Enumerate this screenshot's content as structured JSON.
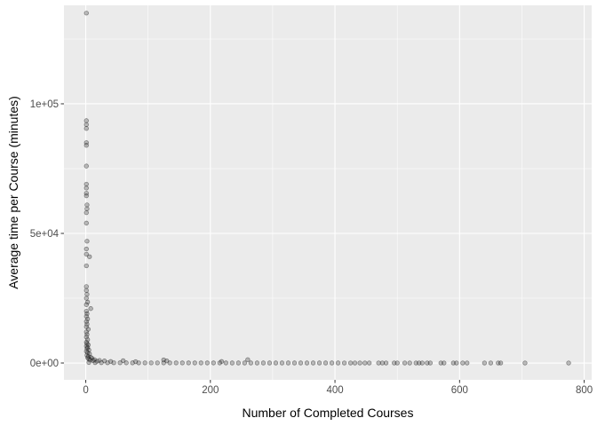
{
  "chart_data": {
    "type": "scatter",
    "title": "",
    "xlabel": "Number of Completed Courses",
    "ylabel": "Average time per Course (minutes)",
    "xlim": [
      -35,
      812
    ],
    "ylim": [
      -6500,
      138000
    ],
    "x_ticks": [
      0,
      200,
      400,
      600,
      800
    ],
    "x_tick_labels": [
      "0",
      "200",
      "400",
      "600",
      "800"
    ],
    "y_ticks": [
      0,
      50000,
      100000
    ],
    "y_tick_labels": [
      "0e+00",
      "5e+04",
      "1e+05"
    ],
    "grid": true,
    "legend": "none",
    "colors": {
      "panel_background": "#ebebeb",
      "grid_major": "#ffffff",
      "point_fill": "#4d4d4d",
      "point_stroke": "#000000"
    },
    "points": [
      {
        "x": 1,
        "y": 135000
      },
      {
        "x": 1,
        "y": 93500
      },
      {
        "x": 1,
        "y": 92000
      },
      {
        "x": 1,
        "y": 90500
      },
      {
        "x": 1,
        "y": 85000
      },
      {
        "x": 1,
        "y": 84000
      },
      {
        "x": 1,
        "y": 76000
      },
      {
        "x": 1,
        "y": 69000
      },
      {
        "x": 1,
        "y": 67500
      },
      {
        "x": 1,
        "y": 65500
      },
      {
        "x": 1,
        "y": 64500
      },
      {
        "x": 2,
        "y": 61000
      },
      {
        "x": 2,
        "y": 59500
      },
      {
        "x": 1,
        "y": 58000
      },
      {
        "x": 1,
        "y": 54000
      },
      {
        "x": 2,
        "y": 47000
      },
      {
        "x": 1,
        "y": 44000
      },
      {
        "x": 1,
        "y": 42000
      },
      {
        "x": 6,
        "y": 41000
      },
      {
        "x": 1,
        "y": 37500
      },
      {
        "x": 1,
        "y": 29500
      },
      {
        "x": 1,
        "y": 28000
      },
      {
        "x": 2,
        "y": 26500
      },
      {
        "x": 1,
        "y": 25000
      },
      {
        "x": 3,
        "y": 23500
      },
      {
        "x": 1,
        "y": 22500
      },
      {
        "x": 8,
        "y": 21000
      },
      {
        "x": 1,
        "y": 20000
      },
      {
        "x": 2,
        "y": 19000
      },
      {
        "x": 1,
        "y": 18000
      },
      {
        "x": 3,
        "y": 17000
      },
      {
        "x": 1,
        "y": 16000
      },
      {
        "x": 2,
        "y": 15000
      },
      {
        "x": 1,
        "y": 14000
      },
      {
        "x": 4,
        "y": 13000
      },
      {
        "x": 1,
        "y": 12000
      },
      {
        "x": 2,
        "y": 11000
      },
      {
        "x": 1,
        "y": 10000
      },
      {
        "x": 3,
        "y": 9000
      },
      {
        "x": 1,
        "y": 8000
      },
      {
        "x": 2,
        "y": 7500
      },
      {
        "x": 4,
        "y": 7000
      },
      {
        "x": 1,
        "y": 6500
      },
      {
        "x": 3,
        "y": 6000
      },
      {
        "x": 2,
        "y": 5500
      },
      {
        "x": 5,
        "y": 5000
      },
      {
        "x": 1,
        "y": 4500
      },
      {
        "x": 3,
        "y": 4000
      },
      {
        "x": 6,
        "y": 3500
      },
      {
        "x": 2,
        "y": 3000
      },
      {
        "x": 4,
        "y": 2500
      },
      {
        "x": 8,
        "y": 2200
      },
      {
        "x": 3,
        "y": 2000
      },
      {
        "x": 10,
        "y": 1800
      },
      {
        "x": 5,
        "y": 1500
      },
      {
        "x": 14,
        "y": 1300
      },
      {
        "x": 7,
        "y": 1100
      },
      {
        "x": 22,
        "y": 1000
      },
      {
        "x": 12,
        "y": 900
      },
      {
        "x": 30,
        "y": 800
      },
      {
        "x": 18,
        "y": 700
      },
      {
        "x": 40,
        "y": 600
      },
      {
        "x": 60,
        "y": 900
      },
      {
        "x": 80,
        "y": 500
      },
      {
        "x": 125,
        "y": 1200
      },
      {
        "x": 130,
        "y": 800
      },
      {
        "x": 260,
        "y": 1300
      },
      {
        "x": 218,
        "y": 600
      },
      {
        "x": 5,
        "y": 200
      },
      {
        "x": 15,
        "y": 150
      },
      {
        "x": 25,
        "y": 120
      },
      {
        "x": 35,
        "y": 100
      },
      {
        "x": 45,
        "y": 90
      },
      {
        "x": 55,
        "y": 80
      },
      {
        "x": 65,
        "y": 70
      },
      {
        "x": 75,
        "y": 65
      },
      {
        "x": 85,
        "y": 60
      },
      {
        "x": 95,
        "y": 55
      },
      {
        "x": 105,
        "y": 50
      },
      {
        "x": 115,
        "y": 48
      },
      {
        "x": 125,
        "y": 45
      },
      {
        "x": 135,
        "y": 42
      },
      {
        "x": 145,
        "y": 40
      },
      {
        "x": 155,
        "y": 38
      },
      {
        "x": 165,
        "y": 36
      },
      {
        "x": 175,
        "y": 34
      },
      {
        "x": 185,
        "y": 32
      },
      {
        "x": 195,
        "y": 30
      },
      {
        "x": 205,
        "y": 30
      },
      {
        "x": 215,
        "y": 28
      },
      {
        "x": 225,
        "y": 28
      },
      {
        "x": 235,
        "y": 26
      },
      {
        "x": 245,
        "y": 26
      },
      {
        "x": 255,
        "y": 25
      },
      {
        "x": 265,
        "y": 25
      },
      {
        "x": 275,
        "y": 24
      },
      {
        "x": 285,
        "y": 24
      },
      {
        "x": 295,
        "y": 23
      },
      {
        "x": 305,
        "y": 23
      },
      {
        "x": 315,
        "y": 22
      },
      {
        "x": 325,
        "y": 22
      },
      {
        "x": 335,
        "y": 21
      },
      {
        "x": 345,
        "y": 21
      },
      {
        "x": 355,
        "y": 20
      },
      {
        "x": 365,
        "y": 20
      },
      {
        "x": 375,
        "y": 20
      },
      {
        "x": 385,
        "y": 19
      },
      {
        "x": 395,
        "y": 19
      },
      {
        "x": 405,
        "y": 19
      },
      {
        "x": 415,
        "y": 18
      },
      {
        "x": 425,
        "y": 18
      },
      {
        "x": 432,
        "y": 18
      },
      {
        "x": 440,
        "y": 17
      },
      {
        "x": 448,
        "y": 17
      },
      {
        "x": 455,
        "y": 17
      },
      {
        "x": 470,
        "y": 16
      },
      {
        "x": 476,
        "y": 16
      },
      {
        "x": 482,
        "y": 16
      },
      {
        "x": 495,
        "y": 15
      },
      {
        "x": 500,
        "y": 15
      },
      {
        "x": 512,
        "y": 15
      },
      {
        "x": 520,
        "y": 15
      },
      {
        "x": 530,
        "y": 14
      },
      {
        "x": 535,
        "y": 14
      },
      {
        "x": 540,
        "y": 14
      },
      {
        "x": 548,
        "y": 14
      },
      {
        "x": 553,
        "y": 14
      },
      {
        "x": 570,
        "y": 13
      },
      {
        "x": 575,
        "y": 13
      },
      {
        "x": 590,
        "y": 13
      },
      {
        "x": 595,
        "y": 13
      },
      {
        "x": 605,
        "y": 12
      },
      {
        "x": 612,
        "y": 12
      },
      {
        "x": 640,
        "y": 12
      },
      {
        "x": 650,
        "y": 12
      },
      {
        "x": 662,
        "y": 11
      },
      {
        "x": 666,
        "y": 11
      },
      {
        "x": 705,
        "y": 10
      },
      {
        "x": 775,
        "y": 10
      }
    ]
  }
}
